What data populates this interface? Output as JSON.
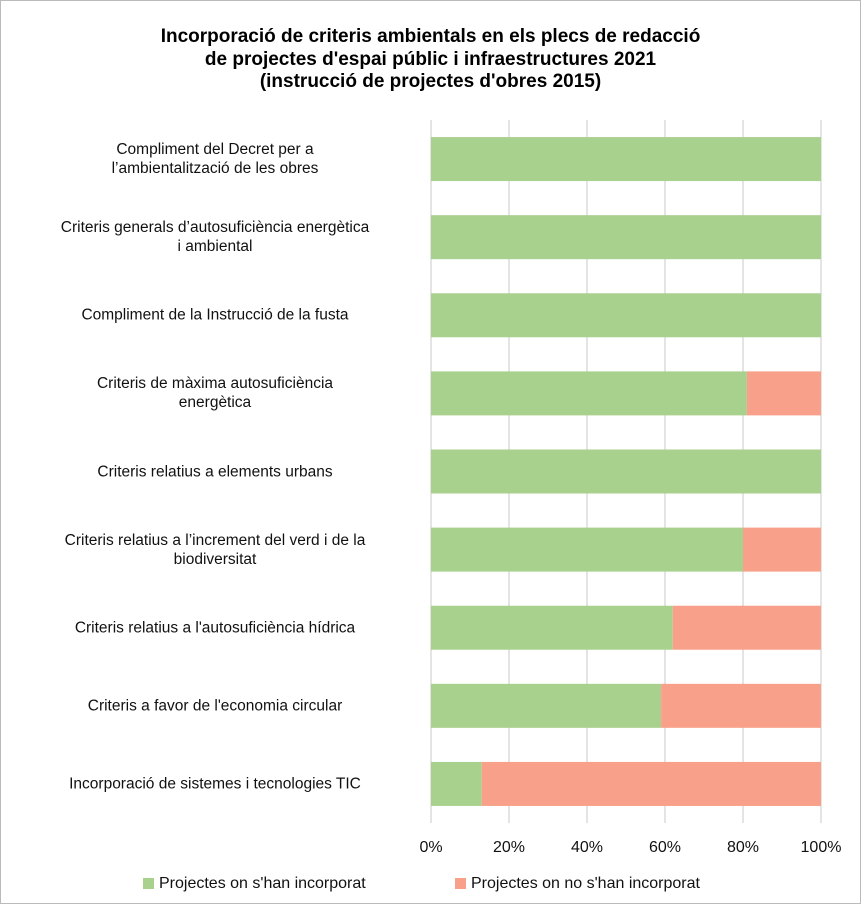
{
  "chart_data": {
    "type": "stacked_barh",
    "title": "Incorporació de criteris ambientals en els plecs de redacció\nde projectes d'espai públic i infraestructures 2021\n(instrucció de projectes d'obres 2015)",
    "categories": [
      "Compliment del Decret per a\nl’ambientalització de les obres",
      "Criteris generals d’autosuficiència energètica\ni ambiental",
      "Compliment de la Instrucció de la fusta",
      "Criteris de màxima autosuficiència\nenergètica",
      "Criteris relatius a elements urbans",
      "Criteris relatius a l’increment del verd i de la\nbiodiversitat",
      "Criteris relatius a l'autosuficiència hídrica",
      "Criteris a favor de l'economia circular",
      "Incorporació de sistemes i tecnologies TIC"
    ],
    "series": [
      {
        "name": "Projectes on s'han incorporat",
        "color": "#a9d18e",
        "values": [
          100,
          100,
          100,
          81,
          100,
          80,
          62,
          59,
          13
        ]
      },
      {
        "name": "Projectes on no s'han incorporat",
        "color": "#f8a08a",
        "values": [
          0,
          0,
          0,
          19,
          0,
          20,
          38,
          41,
          87
        ]
      }
    ],
    "xlim": [
      0,
      100
    ],
    "xticks": [
      {
        "value": 0,
        "label": "0%"
      },
      {
        "value": 20,
        "label": "20%"
      },
      {
        "value": 40,
        "label": "40%"
      },
      {
        "value": 60,
        "label": "60%"
      },
      {
        "value": 80,
        "label": "80%"
      },
      {
        "value": 100,
        "label": "100%"
      }
    ],
    "grid": true,
    "legend": "bottom"
  }
}
